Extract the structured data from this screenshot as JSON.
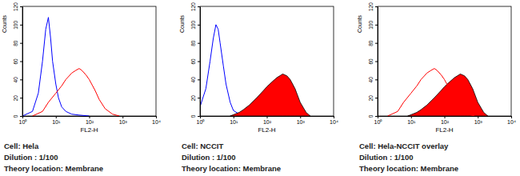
{
  "chart_data": [
    {
      "type": "line",
      "log": "x",
      "xlabel": "FL2-H",
      "ylabel": "Counts",
      "xlim": [
        1,
        10000
      ],
      "xticks": [
        {
          "value": 1,
          "label": "10⁰"
        },
        {
          "value": 10,
          "label": "10¹"
        },
        {
          "value": 100,
          "label": "10²"
        },
        {
          "value": 1000,
          "label": "10³"
        },
        {
          "value": 10000,
          "label": "10⁴"
        }
      ],
      "ylim": [
        0,
        120
      ],
      "yticks": [
        0,
        20,
        40,
        60,
        80,
        100,
        120
      ],
      "series": [
        {
          "type": "line",
          "color": "#0000ff",
          "x": [
            1,
            2,
            3,
            4,
            5,
            6,
            7,
            8,
            10,
            12,
            15,
            20,
            30,
            50,
            100
          ],
          "values": [
            0,
            5,
            25,
            60,
            95,
            108,
            85,
            60,
            35,
            20,
            10,
            5,
            2,
            1,
            0
          ]
        },
        {
          "type": "line",
          "color": "#ff0000",
          "x": [
            2,
            4,
            6,
            10,
            15,
            20,
            30,
            40,
            50,
            60,
            80,
            100,
            150,
            200,
            300,
            500,
            800
          ],
          "values": [
            0,
            5,
            15,
            25,
            33,
            40,
            47,
            50,
            52,
            50,
            45,
            40,
            28,
            18,
            8,
            2,
            0
          ]
        }
      ],
      "annotations": [
        "Cell: Hela",
        "Dilution : 1/100",
        "Theory location: Membrane"
      ]
    },
    {
      "type": "line",
      "log": "x",
      "xlabel": "FL2-H",
      "ylabel": "Counts",
      "xlim": [
        1,
        10000
      ],
      "xticks": [
        {
          "value": 1,
          "label": "10⁰"
        },
        {
          "value": 10,
          "label": "10¹"
        },
        {
          "value": 100,
          "label": "10²"
        },
        {
          "value": 1000,
          "label": "10³"
        },
        {
          "value": 10000,
          "label": "10⁴"
        }
      ],
      "ylim": [
        0,
        120
      ],
      "yticks": [
        0,
        20,
        40,
        60,
        80,
        100,
        120
      ],
      "series": [
        {
          "type": "line",
          "color": "#0000ff",
          "x": [
            1,
            1.5,
            2,
            2.5,
            3,
            3.5,
            4,
            5,
            6,
            8,
            10,
            15,
            30
          ],
          "values": [
            10,
            30,
            60,
            85,
            100,
            95,
            80,
            55,
            35,
            15,
            6,
            2,
            0
          ]
        },
        {
          "type": "area",
          "color": "#ff0000",
          "x": [
            8,
            15,
            20,
            30,
            50,
            80,
            100,
            150,
            200,
            300,
            400,
            500,
            700,
            1000,
            1500,
            2000
          ],
          "values": [
            0,
            4,
            7,
            12,
            20,
            28,
            32,
            38,
            42,
            46,
            44,
            40,
            30,
            15,
            4,
            0
          ]
        }
      ],
      "annotations": [
        "Cell: NCCIT",
        "Dilution : 1/100",
        "Theory location: Membrane"
      ]
    },
    {
      "type": "line",
      "log": "x",
      "xlabel": "FL2-H",
      "ylabel": "Counts",
      "xlim": [
        1,
        10000
      ],
      "xticks": [
        {
          "value": 1,
          "label": "10⁰"
        },
        {
          "value": 10,
          "label": "10¹"
        },
        {
          "value": 100,
          "label": "10²"
        },
        {
          "value": 1000,
          "label": "10³"
        },
        {
          "value": 10000,
          "label": "10⁴"
        }
      ],
      "ylim": [
        0,
        120
      ],
      "yticks": [
        0,
        20,
        40,
        60,
        80,
        100,
        120
      ],
      "series": [
        {
          "type": "area",
          "color": "#ff0000",
          "x": [
            8,
            15,
            20,
            30,
            50,
            80,
            100,
            150,
            200,
            300,
            400,
            500,
            700,
            1000,
            1500,
            2000
          ],
          "values": [
            0,
            4,
            7,
            12,
            20,
            28,
            32,
            38,
            42,
            46,
            44,
            40,
            30,
            15,
            4,
            0
          ]
        },
        {
          "type": "line",
          "color": "#ff0000",
          "x": [
            2,
            4,
            6,
            10,
            15,
            20,
            30,
            40,
            50,
            60,
            80,
            100,
            150,
            200,
            300,
            500,
            800
          ],
          "values": [
            0,
            5,
            15,
            25,
            33,
            40,
            47,
            50,
            52,
            50,
            45,
            40,
            28,
            18,
            8,
            2,
            0
          ]
        }
      ],
      "annotations": [
        "Cell: Hela-NCCIT overlay",
        "Dilution : 1/100",
        "Theory location: Membrane"
      ]
    }
  ]
}
